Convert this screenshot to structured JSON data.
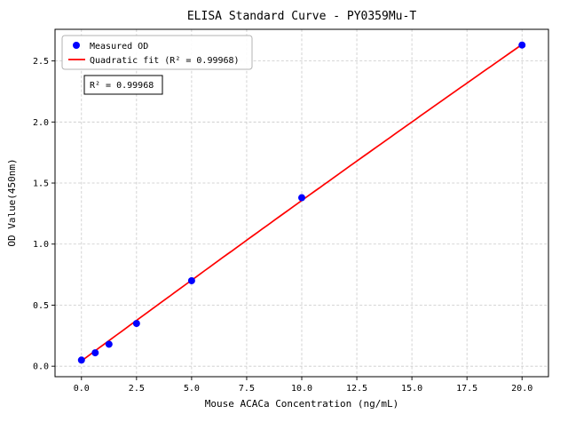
{
  "chart_data": {
    "type": "scatter",
    "title": "ELISA Standard Curve - PY0359Mu-T",
    "xlabel": "Mouse ACACa Concentration (ng/mL)",
    "ylabel": "OD Value(450nm)",
    "xlim": [
      -1.2,
      21.2
    ],
    "ylim": [
      -0.086,
      2.759
    ],
    "grid": true,
    "grid_style": "dashed",
    "legend_position": "upper-left",
    "annotation": "R² = 0.99968",
    "r_squared": 0.99968,
    "xticks": {
      "values": [
        0,
        2.5,
        5,
        7.5,
        10,
        12.5,
        15,
        17.5,
        20
      ],
      "labels": [
        "0.0",
        "2.5",
        "5.0",
        "7.5",
        "10.0",
        "12.5",
        "15.0",
        "17.5",
        "20.0"
      ]
    },
    "yticks": {
      "values": [
        0,
        0.5,
        1,
        1.5,
        2,
        2.5
      ],
      "labels": [
        "0.0",
        "0.5",
        "1.0",
        "1.5",
        "2.0",
        "2.5"
      ]
    },
    "series": [
      {
        "name": "Measured OD",
        "type": "scatter",
        "color": "#0000ff",
        "x": [
          0,
          0.625,
          1.25,
          2.5,
          5,
          10,
          20
        ],
        "y": [
          0.05,
          0.11,
          0.18,
          0.35,
          0.7,
          1.38,
          2.63
        ]
      },
      {
        "name": "Quadratic fit (R² = 0.99968)",
        "type": "line",
        "color": "#ff0000",
        "coefficients": [
          0.0431,
          0.13315,
          -0.000178
        ],
        "x_range": [
          0,
          20
        ]
      }
    ],
    "colors": {
      "grid": "#c9c9c9",
      "axis": "#000000",
      "background": "#ffffff"
    }
  }
}
